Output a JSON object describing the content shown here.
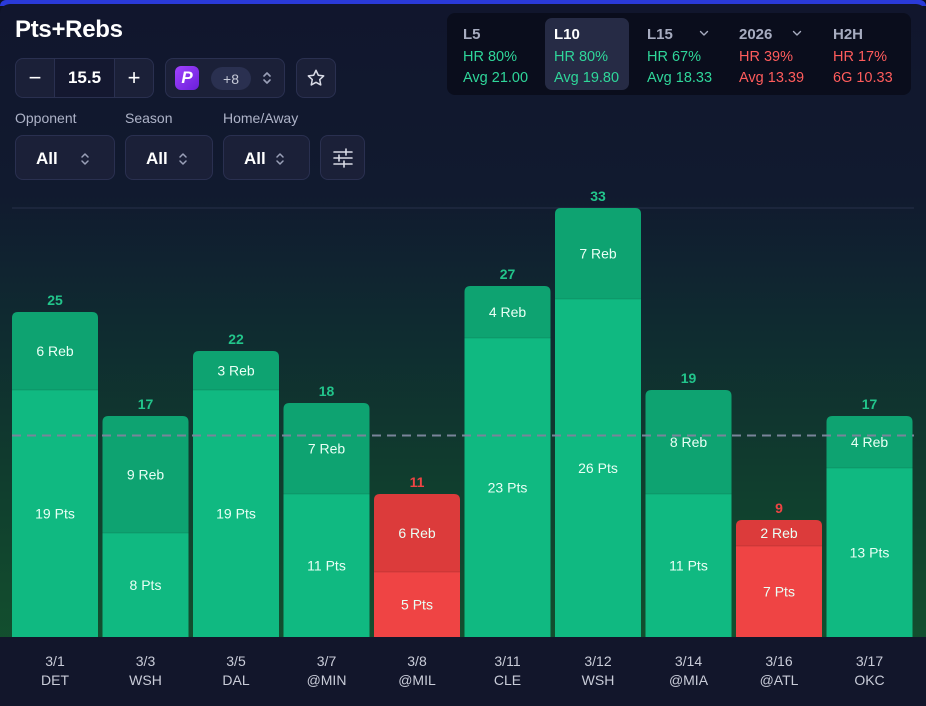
{
  "header": {
    "title": "Pts+Rebs"
  },
  "line": {
    "value": "15.5",
    "minus": "−",
    "plus": "+"
  },
  "book": {
    "logo_letter": "P",
    "extra_books": "+8",
    "icon": "prizepicks-logo-icon"
  },
  "filters": [
    {
      "label": "Opponent",
      "value": "All"
    },
    {
      "label": "Season",
      "value": "All"
    },
    {
      "label": "Home/Away",
      "value": "All"
    }
  ],
  "stats": [
    {
      "label": "L5",
      "hr": "HR 80%",
      "avg": "Avg 21.00",
      "tone": "green",
      "active": false,
      "dropdown": false
    },
    {
      "label": "L10",
      "hr": "HR 80%",
      "avg": "Avg 19.80",
      "tone": "green",
      "active": true,
      "dropdown": false
    },
    {
      "label": "L15",
      "hr": "HR 67%",
      "avg": "Avg 18.33",
      "tone": "green",
      "active": false,
      "dropdown": true
    },
    {
      "label": "2026",
      "hr": "HR 39%",
      "avg": "Avg 13.39",
      "tone": "red",
      "active": false,
      "dropdown": true
    },
    {
      "label": "H2H",
      "hr": "HR 17%",
      "avg": "6G 10.33",
      "tone": "red",
      "active": false,
      "dropdown": false
    }
  ],
  "colors": {
    "over_base": "#10b981",
    "over_top": "#0ea371",
    "under_base": "#ef4444",
    "under_top": "#dc3b3b",
    "over_label": "#22c58b",
    "under_label": "#ef4444",
    "line": "#7a849a"
  },
  "chart_data": {
    "type": "bar",
    "stacked": true,
    "title": "Pts+Rebs",
    "line_value": 15.5,
    "categories": [
      {
        "date": "3/1",
        "opp": "DET"
      },
      {
        "date": "3/3",
        "opp": "WSH"
      },
      {
        "date": "3/5",
        "opp": "DAL"
      },
      {
        "date": "3/7",
        "opp": "@MIN"
      },
      {
        "date": "3/8",
        "opp": "@MIL"
      },
      {
        "date": "3/11",
        "opp": "CLE"
      },
      {
        "date": "3/12",
        "opp": "WSH"
      },
      {
        "date": "3/14",
        "opp": "@MIA"
      },
      {
        "date": "3/16",
        "opp": "@ATL"
      },
      {
        "date": "3/17",
        "opp": "OKC"
      }
    ],
    "series": [
      {
        "name": "Pts",
        "suffix": "Pts",
        "values": [
          19,
          8,
          19,
          11,
          5,
          23,
          26,
          11,
          7,
          13
        ]
      },
      {
        "name": "Reb",
        "suffix": "Reb",
        "values": [
          6,
          9,
          3,
          7,
          6,
          4,
          7,
          8,
          2,
          4
        ]
      }
    ],
    "totals": [
      25,
      17,
      22,
      18,
      11,
      27,
      33,
      19,
      9,
      17
    ],
    "ylim": [
      0,
      36
    ]
  }
}
